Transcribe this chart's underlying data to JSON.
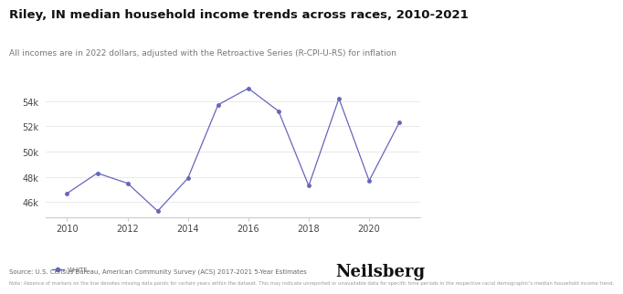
{
  "title": "Riley, IN median household income trends across races, 2010-2021",
  "subtitle": "All incomes are in 2022 dollars, adjusted with the Retroactive Series (R-CPI-U-RS) for inflation",
  "x_values": [
    2010,
    2011,
    2012,
    2013,
    2014,
    2015,
    2016,
    2017,
    2018,
    2019,
    2020,
    2021
  ],
  "white_values": [
    46700,
    48300,
    47500,
    45300,
    47900,
    53700,
    55000,
    53200,
    47300,
    54200,
    47700,
    52300
  ],
  "line_color": "#6666bb",
  "marker": "o",
  "marker_size": 2.5,
  "yticks": [
    46000,
    48000,
    50000,
    52000,
    54000
  ],
  "ytick_labels": [
    "46k",
    "48k",
    "50k",
    "52k",
    "54k"
  ],
  "xticks": [
    2010,
    2012,
    2014,
    2016,
    2018,
    2020
  ],
  "ylim": [
    44800,
    56200
  ],
  "xlim": [
    2009.3,
    2021.7
  ],
  "source_text": "Source: U.S. Census Bureau, American Community Survey (ACS) 2017-2021 5-Year Estimates",
  "note_text": "Note: Absence of markers on the line denotes missing data points for certain years within the dataset. This may indicate unreported or unavailable data for specific time periods in the respective racial demographic's median household income trend.",
  "legend_label": "WHITE",
  "brand": "Neilsberg",
  "background_color": "#ffffff",
  "title_fontsize": 9.5,
  "subtitle_fontsize": 6.5,
  "axis_fontsize": 7,
  "source_fontsize": 5.0,
  "note_fontsize": 3.8,
  "brand_fontsize": 13,
  "legend_fontsize": 5.0
}
